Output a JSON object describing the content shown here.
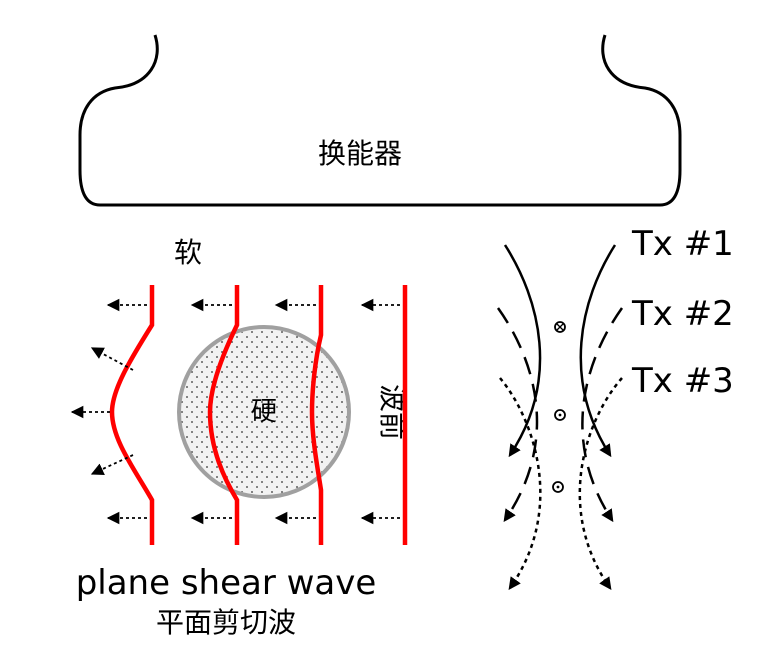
{
  "transducer": {
    "label": "换能器"
  },
  "regions": {
    "soft_label": "软",
    "hard_label": "硬",
    "wavefront_label": "波前"
  },
  "caption": {
    "english": "plane shear wave",
    "chinese": "平面剪切波"
  },
  "transmissions": [
    {
      "label": "Tx #1",
      "style": "solid"
    },
    {
      "label": "Tx #2",
      "style": "dashed"
    },
    {
      "label": "Tx #3",
      "style": "dotted"
    }
  ],
  "colors": {
    "wavefront": "#ff0000",
    "inclusion_fill": "#f2f2f2",
    "inclusion_border": "#a0a0a0",
    "ink": "#000000"
  }
}
